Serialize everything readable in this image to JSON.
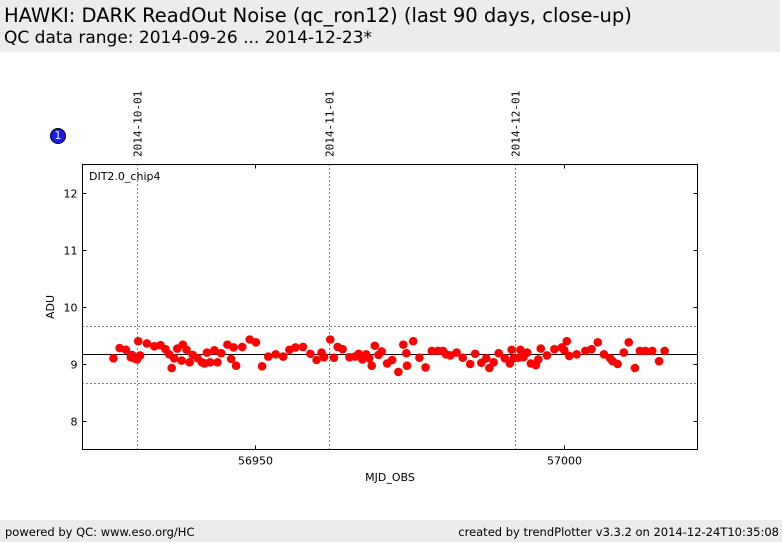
{
  "header": {
    "title": "HAWKI: DARK ReadOut Noise (qc_ron12) (last 90 days, close-up)",
    "subtitle": "QC data range: 2014-09-26 ... 2014-12-23*"
  },
  "badge": {
    "text": "1"
  },
  "footer": {
    "left": "powered by QC: www.eso.org/HC",
    "right": "created by trendPlotter v3.3.2 on 2014-12-24T10:35:08"
  },
  "colors": {
    "points": "#ff0000",
    "badge": "#1a1aee",
    "header_bg": "#ececec"
  },
  "chart_data": {
    "type": "scatter",
    "panel_label": "DIT2.0_chip4",
    "xlabel": "MJD_OBS",
    "ylabel": "ADU",
    "xlim": [
      56922.2,
      57021.5
    ],
    "ylim": [
      7.5,
      12.5
    ],
    "xticks": [
      56950,
      57000
    ],
    "yticks": [
      8,
      9,
      10,
      11,
      12
    ],
    "date_markers": [
      {
        "x": 56931.0,
        "label": "2014-10-01"
      },
      {
        "x": 56962.0,
        "label": "2014-11-01"
      },
      {
        "x": 56992.0,
        "label": "2014-12-01"
      }
    ],
    "reference_lines": {
      "mean": 9.17,
      "upper": 9.67,
      "lower": 8.67
    },
    "series": [
      {
        "x": [
          56927.2,
          56928.2,
          56929.2,
          56930.0,
          56930.2,
          56930.6,
          56931.0,
          56931.2,
          56931.5,
          56932.6,
          56933.8,
          56934.8,
          56935.6,
          56936.2,
          56936.6,
          56937.0,
          56937.5,
          56938.2,
          56938.4,
          56939.0,
          56939.5,
          56940.0,
          56940.8,
          56941.5,
          56941.9,
          56942.3,
          56942.8,
          56943.5,
          56944.0,
          56944.6,
          56945.6,
          56946.2,
          56946.6,
          56947.0,
          56948.0,
          56949.2,
          56950.2,
          56951.2,
          56952.2,
          56953.4,
          56954.6,
          56955.6,
          56956.6,
          56957.8,
          56959.0,
          56960.0,
          56960.8,
          56961.2,
          56962.2,
          56962.8,
          56963.4,
          56964.2,
          56965.3,
          56966.2,
          56966.8,
          56967.4,
          56968.0,
          56968.5,
          56968.9,
          56969.4,
          56970.0,
          56970.5,
          56971.4,
          56972.2,
          56973.2,
          56974.0,
          56974.5,
          56974.6,
          56975.6,
          56976.6,
          56977.6,
          56978.6,
          56979.6,
          56980.4,
          56980.9,
          56981.6,
          56982.6,
          56983.6,
          56984.8,
          56985.6,
          56986.6,
          56987.4,
          56987.9,
          56988.6,
          56989.4,
          56990.4,
          56991.2,
          56991.5,
          56991.8,
          56992.6,
          56992.9,
          56993.4,
          56994.0,
          56994.6,
          56995.4,
          56995.8,
          56996.2,
          56997.2,
          56998.4,
          56999.6,
          57000.0,
          57000.4,
          57000.8,
          57002.0,
          57003.4,
          57004.4,
          57005.4,
          57006.4,
          57007.4,
          57007.8,
          57008.6,
          57009.6,
          57010.4,
          57011.4,
          57012.2,
          57013.1,
          57014.2,
          57015.3,
          57016.2
        ],
        "y": [
          9.1,
          9.28,
          9.25,
          9.12,
          9.16,
          9.1,
          9.08,
          9.4,
          9.15,
          9.36,
          9.31,
          9.33,
          9.26,
          9.17,
          8.93,
          9.1,
          9.27,
          9.06,
          9.34,
          9.25,
          9.03,
          9.16,
          9.1,
          9.03,
          9.01,
          9.2,
          9.03,
          9.24,
          9.03,
          9.19,
          9.34,
          9.09,
          9.29,
          8.97,
          9.3,
          9.43,
          9.38,
          8.96,
          9.13,
          9.17,
          9.13,
          9.25,
          9.29,
          9.3,
          9.18,
          9.07,
          9.2,
          9.12,
          9.43,
          9.11,
          9.3,
          9.26,
          9.12,
          9.13,
          9.18,
          9.08,
          9.17,
          9.1,
          8.97,
          9.32,
          9.16,
          9.22,
          9.01,
          9.07,
          8.86,
          9.34,
          9.19,
          8.97,
          9.4,
          9.11,
          8.94,
          9.23,
          9.23,
          9.23,
          9.17,
          9.15,
          9.2,
          9.11,
          9.0,
          9.18,
          9.02,
          9.1,
          8.93,
          9.03,
          9.19,
          9.1,
          9.01,
          9.25,
          9.1,
          9.11,
          9.25,
          9.12,
          9.2,
          9.01,
          8.98,
          9.08,
          9.27,
          9.15,
          9.26,
          9.29,
          9.24,
          9.4,
          9.14,
          9.17,
          9.23,
          9.26,
          9.38,
          9.17,
          9.1,
          9.05,
          9.0,
          9.2,
          9.38,
          8.93,
          9.23,
          9.23,
          9.23,
          9.05,
          9.23
        ]
      }
    ]
  }
}
